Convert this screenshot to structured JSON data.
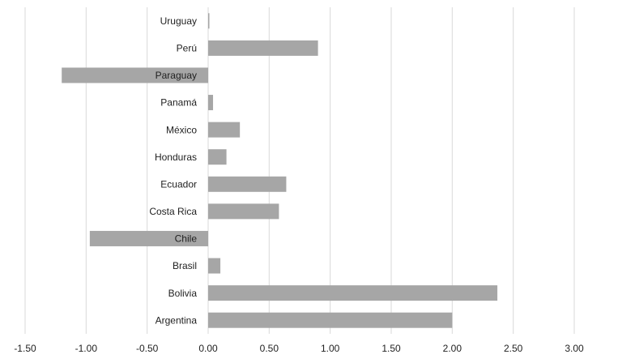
{
  "chart_data": {
    "type": "bar",
    "orientation": "horizontal",
    "categories": [
      "Uruguay",
      "Perú",
      "Paraguay",
      "Panamá",
      "México",
      "Honduras",
      "Ecuador",
      "Costa Rica",
      "Chile",
      "Brasil",
      "Bolivia",
      "Argentina"
    ],
    "values": [
      0.01,
      0.9,
      -1.2,
      0.04,
      0.26,
      0.15,
      0.64,
      0.58,
      -0.97,
      0.1,
      2.37,
      2.0
    ],
    "x_ticks": [
      "-1.50",
      "-1.00",
      "-0.50",
      "0.00",
      "0.50",
      "1.00",
      "1.50",
      "2.00",
      "2.50",
      "3.00"
    ],
    "xlim": [
      -1.5,
      3.0
    ],
    "grid": "vertical",
    "bar_color": "#a6a6a6",
    "title": "",
    "xlabel": "",
    "ylabel": ""
  }
}
